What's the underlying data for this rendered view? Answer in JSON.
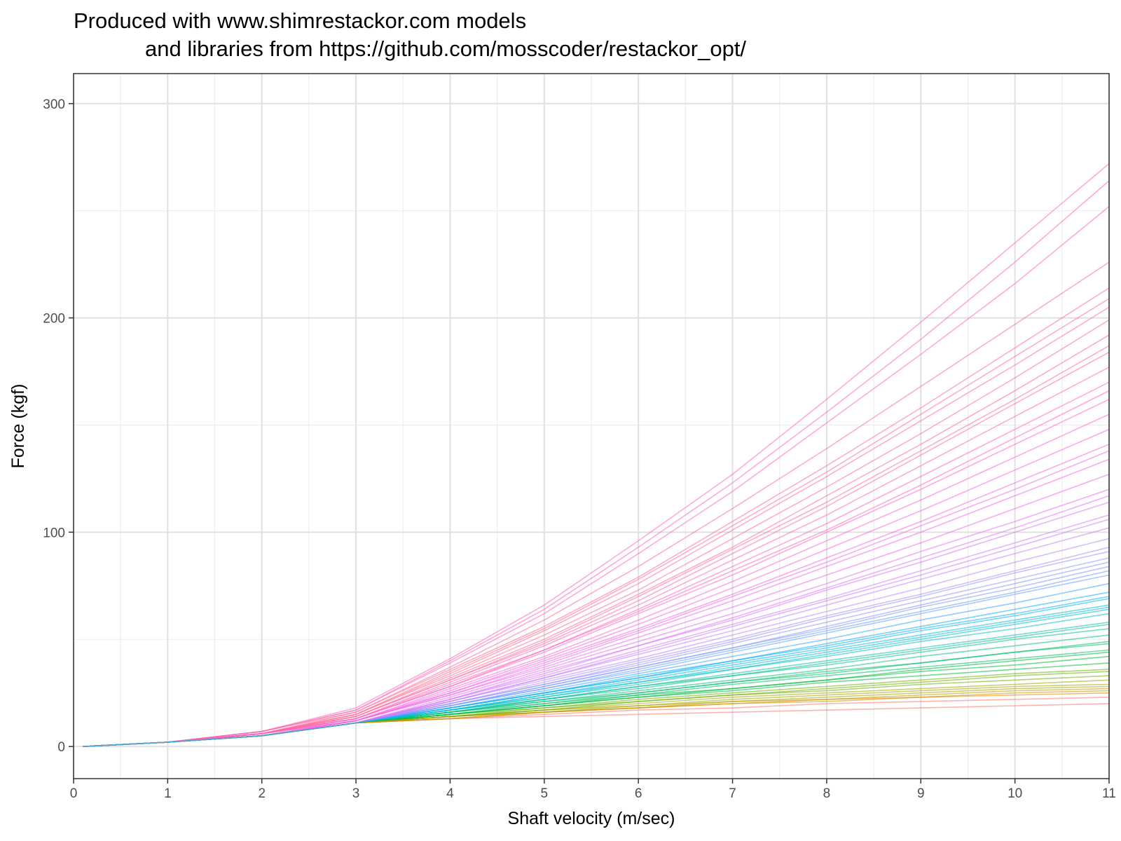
{
  "chart_data": {
    "type": "line",
    "title": "Produced with www.shimrestackor.com models",
    "subtitle": "and libraries from https://github.com/mosscoder/restackor_opt/",
    "xlabel": "Shaft velocity (m/sec)",
    "ylabel": "Force (kgf)",
    "xlim": [
      0,
      11
    ],
    "ylim": [
      -15,
      314
    ],
    "x_ticks": [
      0,
      1,
      2,
      3,
      4,
      5,
      6,
      7,
      8,
      9,
      10,
      11
    ],
    "y_ticks": [
      0,
      100,
      200,
      300
    ],
    "grid": true,
    "legend": "none",
    "series_count": 64,
    "series_note": "Many overlapping force-velocity curves; values sampled at integer velocities",
    "x": [
      0.1,
      1,
      2,
      3,
      4,
      5,
      6,
      7,
      8,
      9,
      10,
      11
    ],
    "series": [
      {
        "color": "#F8766D",
        "values": [
          0,
          2,
          5,
          11,
          13,
          14,
          15,
          16,
          17,
          18,
          19,
          20
        ]
      },
      {
        "color": "#F8766D",
        "values": [
          0,
          2,
          5,
          11,
          13,
          15,
          17,
          18,
          20,
          21,
          22,
          23
        ]
      },
      {
        "color": "#E58700",
        "values": [
          0,
          2,
          5,
          11,
          13,
          16,
          18,
          20,
          22,
          23,
          24,
          25
        ]
      },
      {
        "color": "#C99800",
        "values": [
          0,
          2,
          5,
          11,
          14,
          16,
          18,
          21,
          22,
          24,
          26,
          27
        ]
      },
      {
        "color": "#A3A500",
        "values": [
          0,
          2,
          5,
          11,
          14,
          17,
          19,
          22,
          24,
          26,
          28,
          29
        ]
      },
      {
        "color": "#A3A500",
        "values": [
          0,
          2,
          5,
          11,
          14,
          17,
          20,
          23,
          25,
          27,
          29,
          31
        ]
      },
      {
        "color": "#6BB100",
        "values": [
          0,
          2,
          5,
          11,
          14,
          18,
          21,
          24,
          26,
          29,
          31,
          33
        ]
      },
      {
        "color": "#6BB100",
        "values": [
          0,
          2,
          5,
          11,
          15,
          18,
          22,
          25,
          28,
          31,
          34,
          36
        ]
      },
      {
        "color": "#00BA38",
        "values": [
          0,
          2,
          5,
          11,
          15,
          19,
          23,
          26,
          30,
          33,
          36,
          39
        ]
      },
      {
        "color": "#00BA38",
        "values": [
          0,
          2,
          5,
          11,
          15,
          19,
          24,
          27,
          31,
          35,
          38,
          42
        ]
      },
      {
        "color": "#00BE67",
        "values": [
          0,
          2,
          5,
          11,
          15,
          20,
          24,
          29,
          33,
          37,
          41,
          45
        ]
      },
      {
        "color": "#00BE67",
        "values": [
          0,
          2,
          5,
          11,
          16,
          21,
          25,
          30,
          35,
          39,
          44,
          48
        ]
      },
      {
        "color": "#00BF7D",
        "values": [
          0,
          2,
          5,
          11,
          16,
          21,
          26,
          31,
          36,
          42,
          47,
          52
        ]
      },
      {
        "color": "#00C08B",
        "values": [
          0,
          2,
          5,
          11,
          16,
          22,
          27,
          33,
          38,
          44,
          50,
          55
        ]
      },
      {
        "color": "#00C0AF",
        "values": [
          0,
          2,
          5,
          11,
          17,
          22,
          28,
          34,
          40,
          46,
          52,
          58
        ]
      },
      {
        "color": "#00BFC4",
        "values": [
          0,
          2,
          5,
          11,
          17,
          23,
          29,
          36,
          42,
          49,
          55,
          62
        ]
      },
      {
        "color": "#00BCD8",
        "values": [
          0,
          2,
          5,
          11,
          17,
          24,
          30,
          37,
          44,
          51,
          58,
          65
        ]
      },
      {
        "color": "#00B0F6",
        "values": [
          0,
          2,
          5,
          11,
          18,
          25,
          32,
          39,
          46,
          54,
          61,
          69
        ]
      },
      {
        "color": "#00A9FF",
        "values": [
          0,
          2,
          5,
          11,
          18,
          25,
          33,
          40,
          48,
          56,
          64,
          72
        ]
      },
      {
        "color": "#35A2FF",
        "values": [
          0,
          2,
          5,
          11,
          18,
          26,
          34,
          42,
          50,
          59,
          67,
          76
        ]
      },
      {
        "color": "#619CFF",
        "values": [
          0,
          2,
          5,
          11,
          19,
          27,
          35,
          44,
          53,
          62,
          71,
          80
        ]
      },
      {
        "color": "#7F96FF",
        "values": [
          0,
          2,
          5,
          11,
          19,
          28,
          37,
          46,
          55,
          65,
          74,
          84
        ]
      },
      {
        "color": "#9590FF",
        "values": [
          0,
          2,
          5,
          11,
          20,
          29,
          38,
          48,
          58,
          68,
          78,
          88
        ]
      },
      {
        "color": "#A58AFF",
        "values": [
          0,
          2,
          5,
          11,
          20,
          30,
          40,
          50,
          61,
          71,
          82,
          93
        ]
      },
      {
        "color": "#B983FF",
        "values": [
          0,
          2,
          5,
          11,
          21,
          31,
          41,
          52,
          63,
          74,
          86,
          97
        ]
      },
      {
        "color": "#C77CFF",
        "values": [
          0,
          2,
          5,
          11,
          21,
          32,
          43,
          54,
          66,
          78,
          90,
          102
        ]
      },
      {
        "color": "#D376FF",
        "values": [
          0,
          2,
          5,
          11,
          22,
          33,
          45,
          57,
          69,
          82,
          95,
          108
        ]
      },
      {
        "color": "#DC71FA",
        "values": [
          0,
          2,
          5,
          11,
          22,
          34,
          47,
          59,
          73,
          86,
          100,
          114
        ]
      },
      {
        "color": "#E76BF3",
        "values": [
          0,
          2,
          5,
          11,
          23,
          36,
          49,
          62,
          76,
          91,
          105,
          120
        ]
      },
      {
        "color": "#ED68ED",
        "values": [
          0,
          2,
          5,
          12,
          24,
          37,
          51,
          65,
          80,
          95,
          111,
          127
        ]
      },
      {
        "color": "#F265E7",
        "values": [
          0,
          2,
          5,
          12,
          24,
          38,
          53,
          68,
          84,
          100,
          117,
          134
        ]
      },
      {
        "color": "#F763E0",
        "values": [
          0,
          2,
          5,
          12,
          25,
          40,
          55,
          71,
          88,
          105,
          123,
          141
        ]
      },
      {
        "color": "#FA62DB",
        "values": [
          0,
          2,
          6,
          12,
          26,
          41,
          57,
          74,
          92,
          110,
          129,
          148
        ]
      },
      {
        "color": "#FD61D1",
        "values": [
          0,
          2,
          6,
          12,
          27,
          42,
          59,
          77,
          96,
          115,
          135,
          155
        ]
      },
      {
        "color": "#FF61C9",
        "values": [
          0,
          2,
          6,
          13,
          28,
          44,
          62,
          80,
          100,
          120,
          141,
          162
        ]
      },
      {
        "color": "#FF62BC",
        "values": [
          0,
          2,
          6,
          13,
          29,
          45,
          64,
          84,
          104,
          126,
          148,
          170
        ]
      },
      {
        "color": "#FF64B0",
        "values": [
          0,
          2,
          6,
          13,
          30,
          47,
          66,
          87,
          108,
          131,
          154,
          177
        ]
      },
      {
        "color": "#FF67A4",
        "values": [
          0,
          2,
          6,
          14,
          31,
          48,
          68,
          90,
          112,
          136,
          160,
          184
        ]
      },
      {
        "color": "#FF6A98",
        "values": [
          0,
          2,
          6,
          14,
          32,
          50,
          71,
          93,
          117,
          141,
          166,
          192
        ]
      },
      {
        "color": "#FF6C91",
        "values": [
          0,
          2,
          6,
          15,
          33,
          52,
          73,
          97,
          121,
          146,
          172,
          199
        ]
      },
      {
        "color": "#FF6C91",
        "values": [
          0,
          2,
          6,
          15,
          34,
          54,
          76,
          101,
          126,
          152,
          178,
          205
        ]
      },
      {
        "color": "#FF6C91",
        "values": [
          0,
          2,
          6,
          16,
          36,
          56,
          79,
          105,
          131,
          158,
          186,
          214
        ]
      },
      {
        "color": "#FF6A98",
        "values": [
          0,
          2,
          7,
          16,
          37,
          59,
          84,
          111,
          139,
          168,
          197,
          226
        ]
      },
      {
        "color": "#FF62BC",
        "values": [
          0,
          2,
          7,
          17,
          39,
          62,
          90,
          119,
          151,
          183,
          216,
          252
        ]
      },
      {
        "color": "#FF62BC",
        "values": [
          0,
          2,
          7,
          17,
          40,
          64,
          93,
          123,
          156,
          190,
          226,
          264
        ]
      },
      {
        "color": "#FF62BC",
        "values": [
          0,
          2,
          7,
          18,
          41,
          66,
          96,
          127,
          162,
          198,
          235,
          272
        ]
      },
      {
        "color": "#FF6C91",
        "values": [
          0,
          2,
          6,
          15,
          35,
          55,
          78,
          103,
          128,
          155,
          182,
          209
        ]
      },
      {
        "color": "#FF67A4",
        "values": [
          0,
          2,
          6,
          14,
          31,
          49,
          70,
          92,
          114,
          138,
          162,
          187
        ]
      },
      {
        "color": "#F265E7",
        "values": [
          0,
          2,
          5,
          12,
          25,
          39,
          54,
          70,
          86,
          103,
          120,
          138
        ]
      },
      {
        "color": "#C77CFF",
        "values": [
          0,
          2,
          5,
          11,
          21,
          32,
          44,
          56,
          68,
          80,
          93,
          106
        ]
      },
      {
        "color": "#9590FF",
        "values": [
          0,
          2,
          5,
          11,
          20,
          29,
          39,
          49,
          60,
          70,
          81,
          91
        ]
      },
      {
        "color": "#619CFF",
        "values": [
          0,
          2,
          5,
          11,
          19,
          27,
          36,
          45,
          54,
          63,
          72,
          82
        ]
      },
      {
        "color": "#00B0F6",
        "values": [
          0,
          2,
          5,
          11,
          18,
          25,
          32,
          40,
          47,
          55,
          62,
          70
        ]
      },
      {
        "color": "#00BFC4",
        "values": [
          0,
          2,
          5,
          11,
          17,
          23,
          30,
          36,
          43,
          50,
          57,
          64
        ]
      },
      {
        "color": "#00C08B",
        "values": [
          0,
          2,
          5,
          11,
          16,
          22,
          28,
          33,
          39,
          45,
          51,
          57
        ]
      },
      {
        "color": "#00BE67",
        "values": [
          0,
          2,
          5,
          11,
          16,
          20,
          25,
          30,
          34,
          39,
          44,
          49
        ]
      },
      {
        "color": "#00BA38",
        "values": [
          0,
          2,
          5,
          11,
          15,
          19,
          23,
          27,
          31,
          36,
          40,
          44
        ]
      },
      {
        "color": "#6BB100",
        "values": [
          0,
          2,
          5,
          11,
          14,
          17,
          21,
          24,
          27,
          30,
          33,
          35
        ]
      },
      {
        "color": "#A3A500",
        "values": [
          0,
          2,
          5,
          11,
          14,
          16,
          19,
          21,
          23,
          25,
          27,
          28
        ]
      },
      {
        "color": "#C99800",
        "values": [
          0,
          2,
          5,
          11,
          13,
          16,
          18,
          20,
          21,
          23,
          25,
          26
        ]
      },
      {
        "color": "#FF62BC",
        "values": [
          0,
          2,
          6,
          13,
          28,
          45,
          63,
          82,
          101,
          122,
          144,
          166
        ]
      },
      {
        "color": "#DC71FA",
        "values": [
          0,
          2,
          5,
          11,
          22,
          35,
          47,
          60,
          74,
          88,
          102,
          117
        ]
      },
      {
        "color": "#7F96FF",
        "values": [
          0,
          2,
          5,
          11,
          19,
          28,
          37,
          46,
          56,
          66,
          76,
          86
        ]
      },
      {
        "color": "#00BCD8",
        "values": [
          0,
          2,
          5,
          11,
          17,
          24,
          31,
          38,
          45,
          52,
          59,
          66
        ]
      }
    ]
  }
}
